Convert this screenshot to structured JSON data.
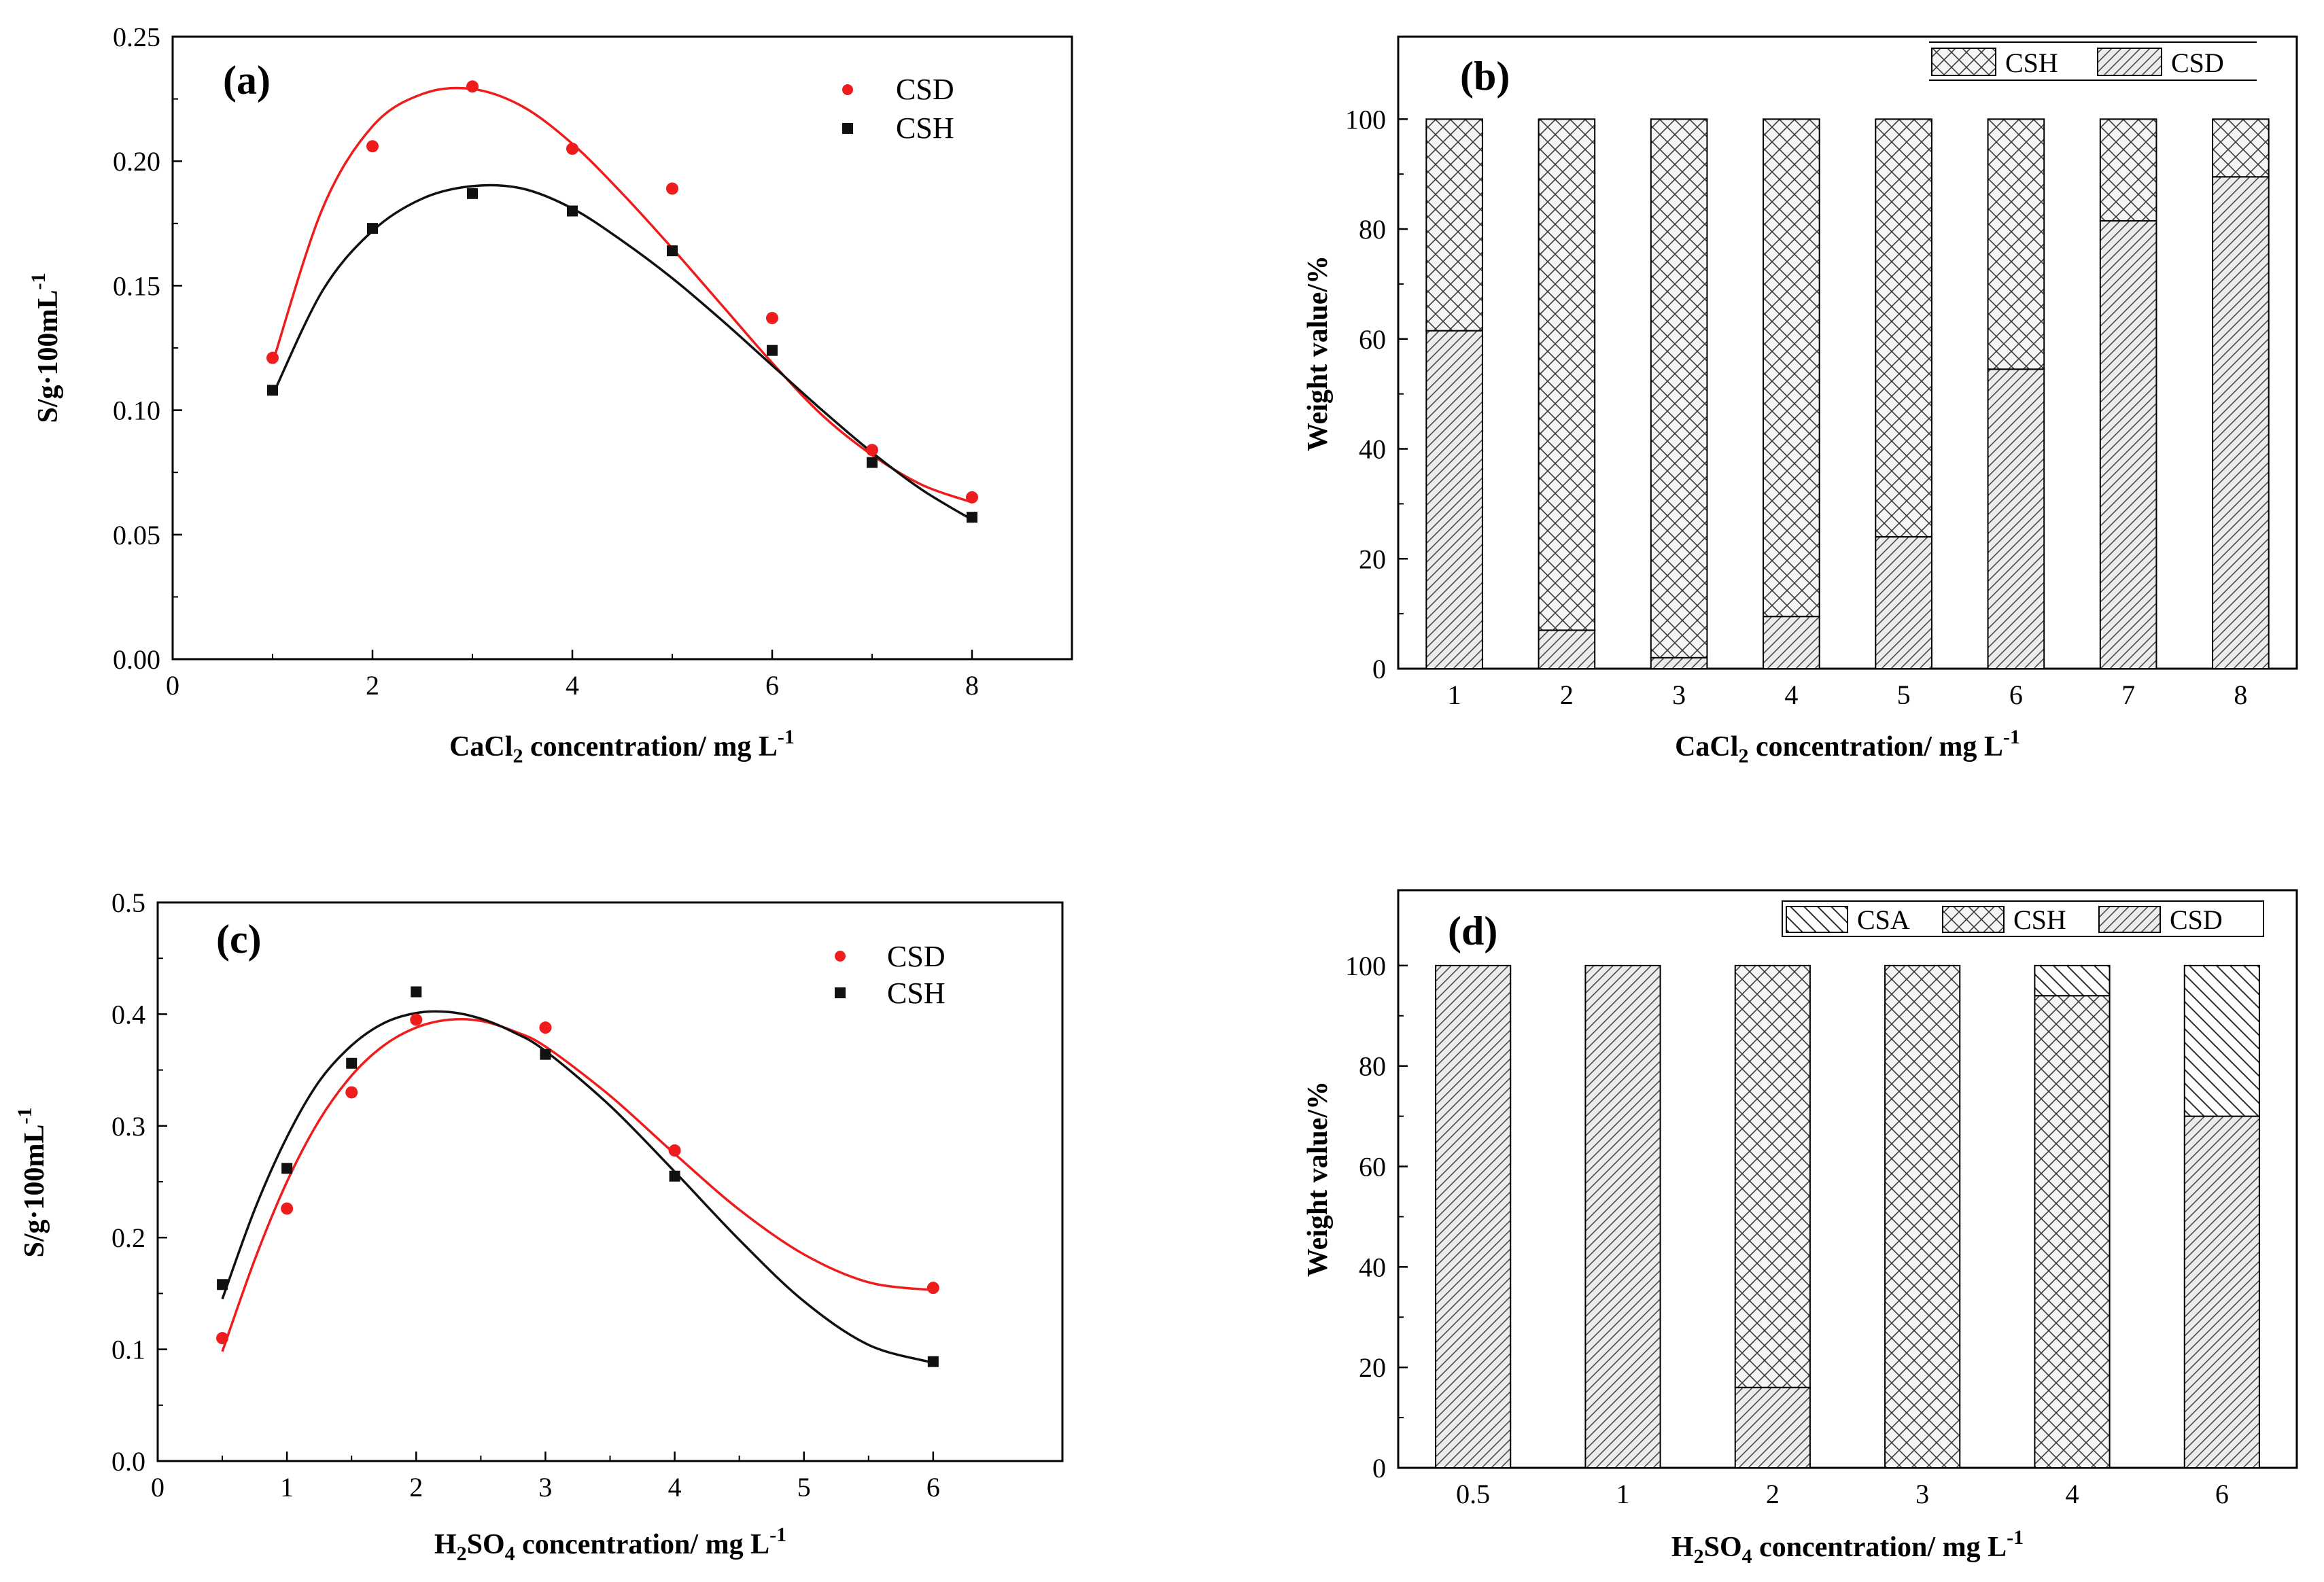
{
  "chart_data": [
    {
      "panel": "(a)",
      "type": "scatter",
      "xlabel_main": "CaCl",
      "xlabel_sub": "2",
      "xlabel_rest": " concentration/ mg L",
      "xlabel_sup": "-1",
      "ylabel_main": "S/g·100mL",
      "ylabel_sup": "-1",
      "xlim": [
        0,
        9
      ],
      "ylim": [
        0,
        0.25
      ],
      "xticks": [
        0,
        2,
        4,
        6,
        8
      ],
      "xtick_labels": [
        "0",
        "2",
        "4",
        "6",
        "8"
      ],
      "yticks": [
        0,
        0.05,
        0.1,
        0.15,
        0.2,
        0.25
      ],
      "ytick_labels": [
        "0.00",
        "0.05",
        "0.10",
        "0.15",
        "0.20",
        "0.25"
      ],
      "series": [
        {
          "name": "CSD",
          "color": "#ee1c1c",
          "marker": "circle",
          "x": [
            1,
            2,
            3,
            4,
            5,
            6,
            7,
            8
          ],
          "y": [
            0.121,
            0.206,
            0.23,
            0.205,
            0.189,
            0.137,
            0.084,
            0.065
          ],
          "fit_x": [
            1,
            1.5,
            2,
            2.5,
            3,
            3.5,
            4,
            4.5,
            5,
            5.5,
            6,
            6.5,
            7,
            7.5,
            8
          ],
          "fit_y": [
            0.119,
            0.181,
            0.214,
            0.227,
            0.229,
            0.222,
            0.207,
            0.187,
            0.165,
            0.142,
            0.119,
            0.098,
            0.082,
            0.07,
            0.063
          ]
        },
        {
          "name": "CSH",
          "color": "#111111",
          "marker": "square",
          "x": [
            1,
            2,
            3,
            4,
            5,
            6,
            7,
            8
          ],
          "y": [
            0.108,
            0.173,
            0.187,
            0.18,
            0.164,
            0.124,
            0.079,
            0.057
          ],
          "fit_x": [
            1,
            1.5,
            2,
            2.5,
            3,
            3.5,
            4,
            4.5,
            5,
            5.5,
            6,
            6.5,
            7,
            7.5,
            8
          ],
          "fit_y": [
            0.106,
            0.148,
            0.172,
            0.185,
            0.19,
            0.189,
            0.181,
            0.168,
            0.153,
            0.136,
            0.118,
            0.1,
            0.083,
            0.068,
            0.056
          ]
        }
      ]
    },
    {
      "panel": "(b)",
      "type": "bar",
      "stacked": true,
      "xlabel_main": "CaCl",
      "xlabel_sub": "2",
      "xlabel_rest": " concentration/ mg L",
      "xlabel_sup": "-1",
      "ylabel": "Weight value/%",
      "ylim": [
        0,
        115
      ],
      "yticks": [
        0,
        20,
        40,
        60,
        80,
        100
      ],
      "ytick_labels": [
        "0",
        "20",
        "40",
        "60",
        "80",
        "100"
      ],
      "categories": [
        "1",
        "2",
        "3",
        "4",
        "5",
        "6",
        "7",
        "8"
      ],
      "series": [
        {
          "name": "CSD",
          "pattern": "diag",
          "values": [
            61.5,
            7,
            2,
            9.5,
            24,
            54.5,
            81.5,
            89.5
          ]
        },
        {
          "name": "CSH",
          "pattern": "cross",
          "values": [
            38.5,
            93,
            98,
            90.5,
            76,
            45.5,
            18.5,
            10.5
          ]
        }
      ],
      "legend": [
        {
          "name": "CSH",
          "pattern": "cross"
        },
        {
          "name": "CSD",
          "pattern": "diag"
        }
      ]
    },
    {
      "panel": "(c)",
      "type": "scatter",
      "xlabel_pre": "H",
      "xlabel_sub1": "2",
      "xlabel_mid": "SO",
      "xlabel_sub2": "4",
      "xlabel_rest": " concentration/ mg L",
      "xlabel_sup": "-1",
      "ylabel_main": "S/g·100mL",
      "ylabel_sup": "-1",
      "xlim": [
        0,
        7
      ],
      "ylim": [
        0,
        0.5
      ],
      "xticks": [
        0,
        1,
        2,
        3,
        4,
        5,
        6
      ],
      "xtick_labels": [
        "0",
        "1",
        "2",
        "3",
        "4",
        "5",
        "6"
      ],
      "yticks": [
        0,
        0.1,
        0.2,
        0.3,
        0.4,
        0.5
      ],
      "ytick_labels": [
        "0.0",
        "0.1",
        "0.2",
        "0.3",
        "0.4",
        "0.5"
      ],
      "series": [
        {
          "name": "CSD",
          "color": "#ee1c1c",
          "marker": "circle",
          "x": [
            0.5,
            1,
            1.5,
            2,
            3,
            4,
            6
          ],
          "y": [
            0.11,
            0.226,
            0.33,
            0.395,
            0.388,
            0.278,
            0.155
          ],
          "fit_x": [
            0.5,
            0.75,
            1,
            1.25,
            1.5,
            1.75,
            2,
            2.25,
            2.5,
            2.75,
            3,
            3.5,
            4,
            4.5,
            5,
            5.5,
            6
          ],
          "fit_y": [
            0.098,
            0.18,
            0.25,
            0.305,
            0.345,
            0.372,
            0.388,
            0.395,
            0.394,
            0.385,
            0.371,
            0.327,
            0.275,
            0.225,
            0.185,
            0.16,
            0.153
          ]
        },
        {
          "name": "CSH",
          "color": "#111111",
          "marker": "square",
          "x": [
            0.5,
            1,
            1.5,
            2,
            3,
            4,
            6
          ],
          "y": [
            0.158,
            0.262,
            0.356,
            0.42,
            0.364,
            0.255,
            0.089
          ],
          "fit_x": [
            0.5,
            0.75,
            1,
            1.25,
            1.5,
            1.75,
            2,
            2.25,
            2.5,
            2.75,
            3,
            3.5,
            4,
            4.5,
            5,
            5.5,
            6
          ],
          "fit_y": [
            0.145,
            0.225,
            0.29,
            0.34,
            0.372,
            0.392,
            0.401,
            0.402,
            0.396,
            0.384,
            0.367,
            0.318,
            0.259,
            0.198,
            0.143,
            0.104,
            0.088
          ]
        }
      ]
    },
    {
      "panel": "(d)",
      "type": "bar",
      "stacked": true,
      "xlabel_pre": "H",
      "xlabel_sub1": "2",
      "xlabel_mid": "SO",
      "xlabel_sub2": "4",
      "xlabel_rest": " concentration/ mg L",
      "xlabel_sup": "-1",
      "ylabel": "Weight value/%",
      "ylim": [
        0,
        115
      ],
      "yticks": [
        0,
        20,
        40,
        60,
        80,
        100
      ],
      "ytick_labels": [
        "0",
        "20",
        "40",
        "60",
        "80",
        "100"
      ],
      "categories": [
        "0.5",
        "1",
        "2",
        "3",
        "4",
        "6"
      ],
      "series": [
        {
          "name": "CSD",
          "pattern": "diag",
          "values": [
            100,
            100,
            16,
            0,
            0,
            70
          ]
        },
        {
          "name": "CSH",
          "pattern": "cross",
          "values": [
            0,
            0,
            84,
            100,
            94,
            0
          ]
        },
        {
          "name": "CSA",
          "pattern": "back",
          "values": [
            0,
            0,
            0,
            0,
            6,
            30
          ]
        }
      ],
      "legend": [
        {
          "name": "CSA",
          "pattern": "back"
        },
        {
          "name": "CSH",
          "pattern": "cross"
        },
        {
          "name": "CSD",
          "pattern": "diag"
        }
      ]
    }
  ]
}
